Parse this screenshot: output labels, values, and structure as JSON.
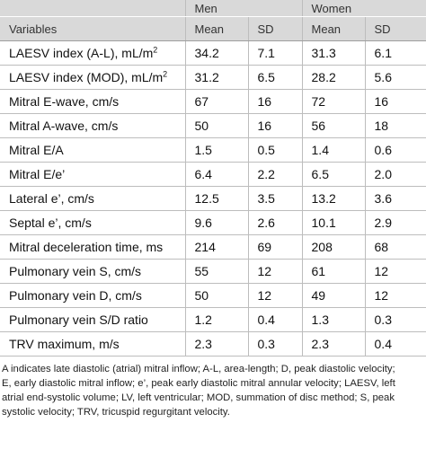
{
  "table": {
    "header": {
      "group_men": "Men",
      "group_women": "Women",
      "col_variables": "Variables",
      "col_men_mean": "Mean",
      "col_men_sd": "SD",
      "col_women_mean": "Mean",
      "col_women_sd": "SD"
    },
    "rows": [
      {
        "label": "LAESV index (A-L), mL/m",
        "label_sup": "2",
        "men_mean": "34.2",
        "men_sd": "7.1",
        "women_mean": "31.3",
        "women_sd": "6.1"
      },
      {
        "label": "LAESV index (MOD), mL/m",
        "label_sup": "2",
        "men_mean": "31.2",
        "men_sd": "6.5",
        "women_mean": "28.2",
        "women_sd": "5.6"
      },
      {
        "label": "Mitral E-wave, cm/s",
        "label_sup": "",
        "men_mean": "67",
        "men_sd": "16",
        "women_mean": "72",
        "women_sd": "16"
      },
      {
        "label": "Mitral A-wave, cm/s",
        "label_sup": "",
        "men_mean": "50",
        "men_sd": "16",
        "women_mean": "56",
        "women_sd": "18"
      },
      {
        "label": "Mitral E/A",
        "label_sup": "",
        "men_mean": "1.5",
        "men_sd": "0.5",
        "women_mean": "1.4",
        "women_sd": "0.6"
      },
      {
        "label": "Mitral E/e’",
        "label_sup": "",
        "men_mean": "6.4",
        "men_sd": "2.2",
        "women_mean": "6.5",
        "women_sd": "2.0"
      },
      {
        "label": "Lateral e’, cm/s",
        "label_sup": "",
        "men_mean": "12.5",
        "men_sd": "3.5",
        "women_mean": "13.2",
        "women_sd": "3.6"
      },
      {
        "label": "Septal e’, cm/s",
        "label_sup": "",
        "men_mean": "9.6",
        "men_sd": "2.6",
        "women_mean": "10.1",
        "women_sd": "2.9"
      },
      {
        "label": "Mitral deceleration time, ms",
        "label_sup": "",
        "men_mean": "214",
        "men_sd": "69",
        "women_mean": "208",
        "women_sd": "68"
      },
      {
        "label": "Pulmonary vein S, cm/s",
        "label_sup": "",
        "men_mean": "55",
        "men_sd": "12",
        "women_mean": "61",
        "women_sd": "12"
      },
      {
        "label": "Pulmonary vein D, cm/s",
        "label_sup": "",
        "men_mean": "50",
        "men_sd": "12",
        "women_mean": "49",
        "women_sd": "12"
      },
      {
        "label": "Pulmonary vein S/D ratio",
        "label_sup": "",
        "men_mean": "1.2",
        "men_sd": "0.4",
        "women_mean": "1.3",
        "women_sd": "0.3"
      },
      {
        "label": "TRV maximum, m/s",
        "label_sup": "",
        "men_mean": "2.3",
        "men_sd": "0.3",
        "women_mean": "2.3",
        "women_sd": "0.4"
      }
    ]
  },
  "footnote": {
    "lines": [
      "A indicates late diastolic (atrial) mitral inflow; A-L, area-length; D, peak diastolic velocity;",
      "E, early diastolic mitral inflow; e’, peak early diastolic mitral annular velocity; LAESV, left",
      "atrial end-systolic volume; LV, left ventricular; MOD, summation of disc method; S, peak",
      "systolic velocity; TRV, tricuspid regurgitant velocity."
    ]
  }
}
